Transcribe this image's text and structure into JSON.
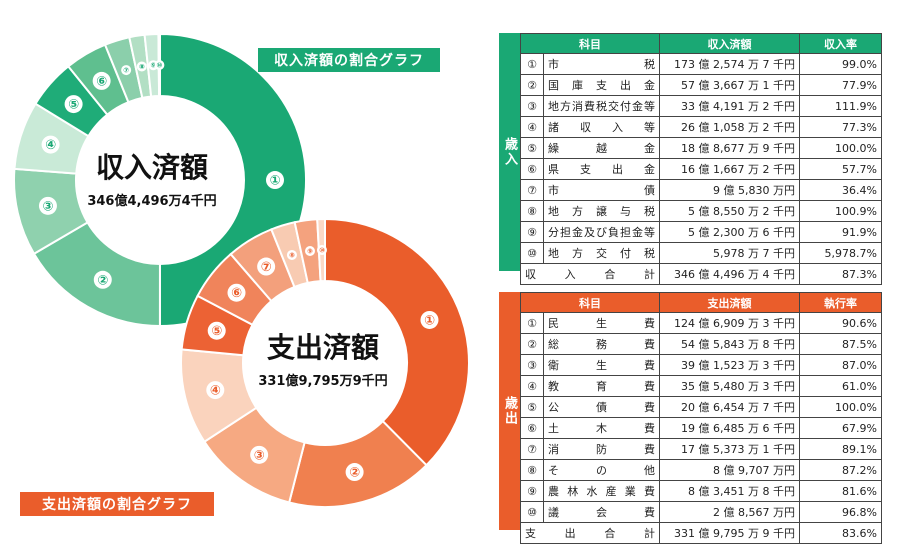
{
  "chart_data": [
    {
      "type": "pie",
      "variant": "donut",
      "title": "収入済額",
      "total_label": "346億4,496万4千円",
      "caption": "収入済額の割合グラフ",
      "marker_labels": [
        "①",
        "②",
        "③",
        "④",
        "⑤",
        "⑥",
        "⑦",
        "⑧",
        "⑨",
        "⑩"
      ],
      "values": [
        173.25747,
        57.36671,
        33.41912,
        26.10583,
        18.86779,
        16.16672,
        9.583,
        5.85502,
        5.23006,
        0.59787
      ],
      "colors": [
        "#1aa874",
        "#6cc49a",
        "#8fd1ae",
        "#c9ead7",
        "#1fac78",
        "#5fbf8f",
        "#8bcfab",
        "#b2dfc4",
        "#c9e9d7",
        "#e2f3e9"
      ]
    },
    {
      "type": "pie",
      "variant": "donut",
      "title": "支出済額",
      "total_label": "331億9,795万9千円",
      "caption": "支出済額の割合グラフ",
      "marker_labels": [
        "①",
        "②",
        "③",
        "④",
        "⑤",
        "⑥",
        "⑦",
        "⑧",
        "⑨",
        "⑩"
      ],
      "values": [
        124.69093,
        54.58438,
        39.15233,
        35.54803,
        20.64547,
        19.64856,
        17.53731,
        8.9707,
        8.34518,
        2.8567
      ],
      "colors": [
        "#ea5d2b",
        "#f0804f",
        "#f6a982",
        "#fad3bd",
        "#ec6234",
        "#f0845b",
        "#f3a07c",
        "#f8cbb2",
        "#f4a27e",
        "#fbd9c6"
      ]
    },
    {
      "type": "table",
      "side_label": "歳入",
      "columns": [
        "科目",
        "収入済額",
        "収入率"
      ],
      "rows": [
        {
          "no": "①",
          "name": "市税",
          "amount": "173 億 2,574 万 7 千円",
          "rate": "99.0%"
        },
        {
          "no": "②",
          "name": "国庫支出金",
          "amount": "57 億 3,667 万 1 千円",
          "rate": "77.9%"
        },
        {
          "no": "③",
          "name": "地方消費税交付金等",
          "amount": "33 億 4,191 万 2 千円",
          "rate": "111.9%"
        },
        {
          "no": "④",
          "name": "諸収入等",
          "amount": "26 億 1,058 万 2 千円",
          "rate": "77.3%"
        },
        {
          "no": "⑤",
          "name": "繰越金",
          "amount": "18 億 8,677 万 9 千円",
          "rate": "100.0%"
        },
        {
          "no": "⑥",
          "name": "県支出金",
          "amount": "16 億 1,667 万 2 千円",
          "rate": "57.7%"
        },
        {
          "no": "⑦",
          "name": "市債",
          "amount": "9 億 5,830 万円",
          "rate": "36.4%"
        },
        {
          "no": "⑧",
          "name": "地方譲与税",
          "amount": "5 億 8,550 万 2 千円",
          "rate": "100.9%"
        },
        {
          "no": "⑨",
          "name": "分担金及び負担金等",
          "amount": "5 億 2,300 万 6 千円",
          "rate": "91.9%"
        },
        {
          "no": "⑩",
          "name": "地方交付税",
          "amount": "5,978 万 7 千円",
          "rate": "5,978.7%"
        }
      ],
      "total": {
        "name": "収入合計",
        "amount": "346 億 4,496 万 4 千円",
        "rate": "87.3%"
      }
    },
    {
      "type": "table",
      "side_label": "歳出",
      "columns": [
        "科目",
        "支出済額",
        "執行率"
      ],
      "rows": [
        {
          "no": "①",
          "name": "民生費",
          "amount": "124 億 6,909 万 3 千円",
          "rate": "90.6%"
        },
        {
          "no": "②",
          "name": "総務費",
          "amount": "54 億 5,843 万 8 千円",
          "rate": "87.5%"
        },
        {
          "no": "③",
          "name": "衛生費",
          "amount": "39 億 1,523 万 3 千円",
          "rate": "87.0%"
        },
        {
          "no": "④",
          "name": "教育費",
          "amount": "35 億 5,480 万 3 千円",
          "rate": "61.0%"
        },
        {
          "no": "⑤",
          "name": "公債費",
          "amount": "20 億 6,454 万 7 千円",
          "rate": "100.0%"
        },
        {
          "no": "⑥",
          "name": "土木費",
          "amount": "19 億 6,485 万 6 千円",
          "rate": "67.9%"
        },
        {
          "no": "⑦",
          "name": "消防費",
          "amount": "17 億 5,373 万 1 千円",
          "rate": "89.1%"
        },
        {
          "no": "⑧",
          "name": "その他",
          "amount": "8 億 9,707 万円",
          "rate": "87.2%"
        },
        {
          "no": "⑨",
          "name": "農林水産業費",
          "amount": "8 億 3,451 万 8 千円",
          "rate": "81.6%"
        },
        {
          "no": "⑩",
          "name": "議会費",
          "amount": "2 億 8,567 万円",
          "rate": "96.8%"
        }
      ],
      "total": {
        "name": "支出合計",
        "amount": "331 億 9,795 万 9 千円",
        "rate": "83.6%"
      }
    }
  ]
}
